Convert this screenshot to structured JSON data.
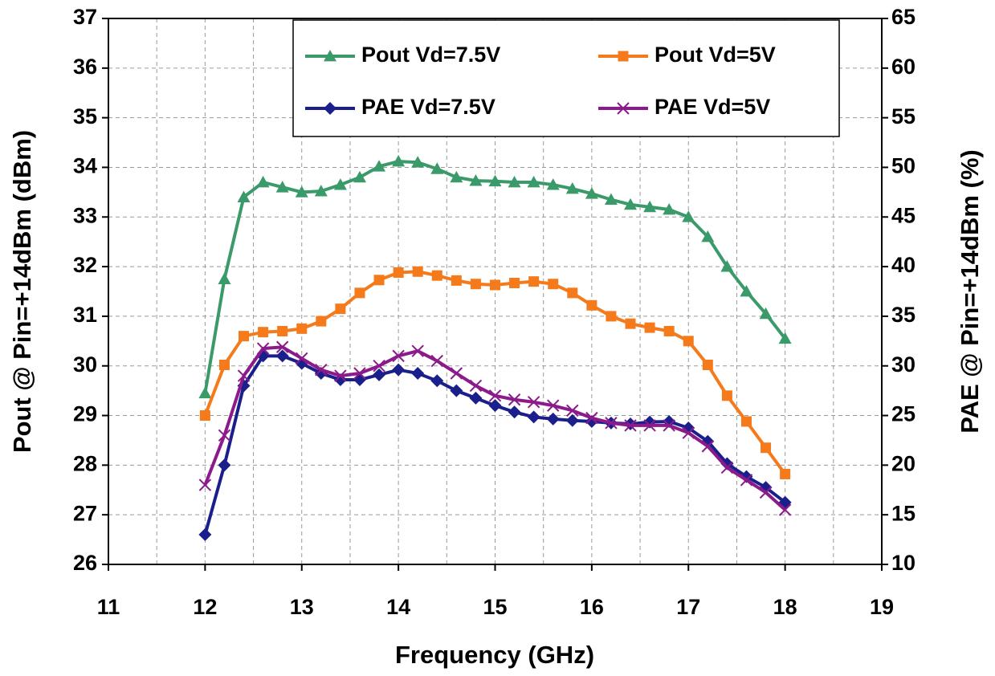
{
  "chart_data": {
    "type": "line",
    "xlabel": "Frequency (GHz)",
    "ylabel": "Pout @ Pin=+14dBm (dBm)",
    "y2label": "PAE @ Pin=+14dBm (%)",
    "x": [
      12,
      12.2,
      12.4,
      12.6,
      12.8,
      13,
      13.2,
      13.4,
      13.6,
      13.8,
      14,
      14.2,
      14.4,
      14.6,
      14.8,
      15,
      15.2,
      15.4,
      15.6,
      15.8,
      16,
      16.2,
      16.4,
      16.6,
      16.8,
      17,
      17.2,
      17.4,
      17.6,
      17.8,
      18
    ],
    "xlim": [
      11,
      19
    ],
    "xticks": [
      11,
      12,
      13,
      14,
      15,
      16,
      17,
      18,
      19
    ],
    "ylim": [
      26,
      37
    ],
    "yticks": [
      26,
      27,
      28,
      29,
      30,
      31,
      32,
      33,
      34,
      35,
      36,
      37
    ],
    "y2lim": [
      10,
      65
    ],
    "y2ticks": [
      10,
      15,
      20,
      25,
      30,
      35,
      40,
      45,
      50,
      55,
      60,
      65
    ],
    "grid": true,
    "legend": "top-right",
    "series": [
      {
        "name": "Pout Vd=7.5V",
        "color": "#3a9a6a",
        "marker": "triangle",
        "values": [
          29.45,
          31.75,
          33.4,
          33.7,
          33.6,
          33.5,
          33.52,
          33.65,
          33.8,
          34.02,
          34.12,
          34.1,
          33.97,
          33.8,
          33.73,
          33.72,
          33.7,
          33.7,
          33.65,
          33.57,
          33.47,
          33.35,
          33.25,
          33.2,
          33.15,
          33.0,
          32.6,
          32.0,
          31.5,
          31.05,
          30.55
        ]
      },
      {
        "name": "Pout Vd=5V",
        "color": "#f57a1b",
        "marker": "square",
        "values": [
          29.0,
          30.02,
          30.6,
          30.68,
          30.7,
          30.75,
          30.9,
          31.15,
          31.47,
          31.73,
          31.88,
          31.9,
          31.82,
          31.72,
          31.65,
          31.63,
          31.67,
          31.7,
          31.65,
          31.47,
          31.22,
          31.0,
          30.85,
          30.77,
          30.7,
          30.5,
          30.02,
          29.4,
          28.88,
          28.35,
          27.82
        ]
      },
      {
        "name": "PAE Vd=7.5V",
        "color": "#1b1f8c",
        "marker": "diamond",
        "axis": "y2",
        "values": [
          13,
          20,
          28,
          31,
          31,
          30.25,
          29.25,
          28.6,
          28.6,
          29.1,
          29.6,
          29.25,
          28.5,
          27.5,
          26.75,
          26,
          25.35,
          24.85,
          24.65,
          24.5,
          24.4,
          24.25,
          24.15,
          24.35,
          24.4,
          23.75,
          22.4,
          20.15,
          18.85,
          17.75,
          16.25
        ]
      },
      {
        "name": "PAE Vd=5V",
        "color": "#8b1a8b",
        "marker": "cross",
        "axis": "y2",
        "values": [
          18,
          23,
          29,
          31.75,
          31.9,
          30.75,
          29.6,
          29,
          29.25,
          30,
          31,
          31.5,
          30.5,
          29.25,
          28,
          27,
          26.6,
          26.35,
          26,
          25.5,
          24.75,
          24.25,
          24,
          24,
          24,
          23.25,
          21.9,
          19.75,
          18.5,
          17.25,
          15.5
        ]
      }
    ]
  }
}
